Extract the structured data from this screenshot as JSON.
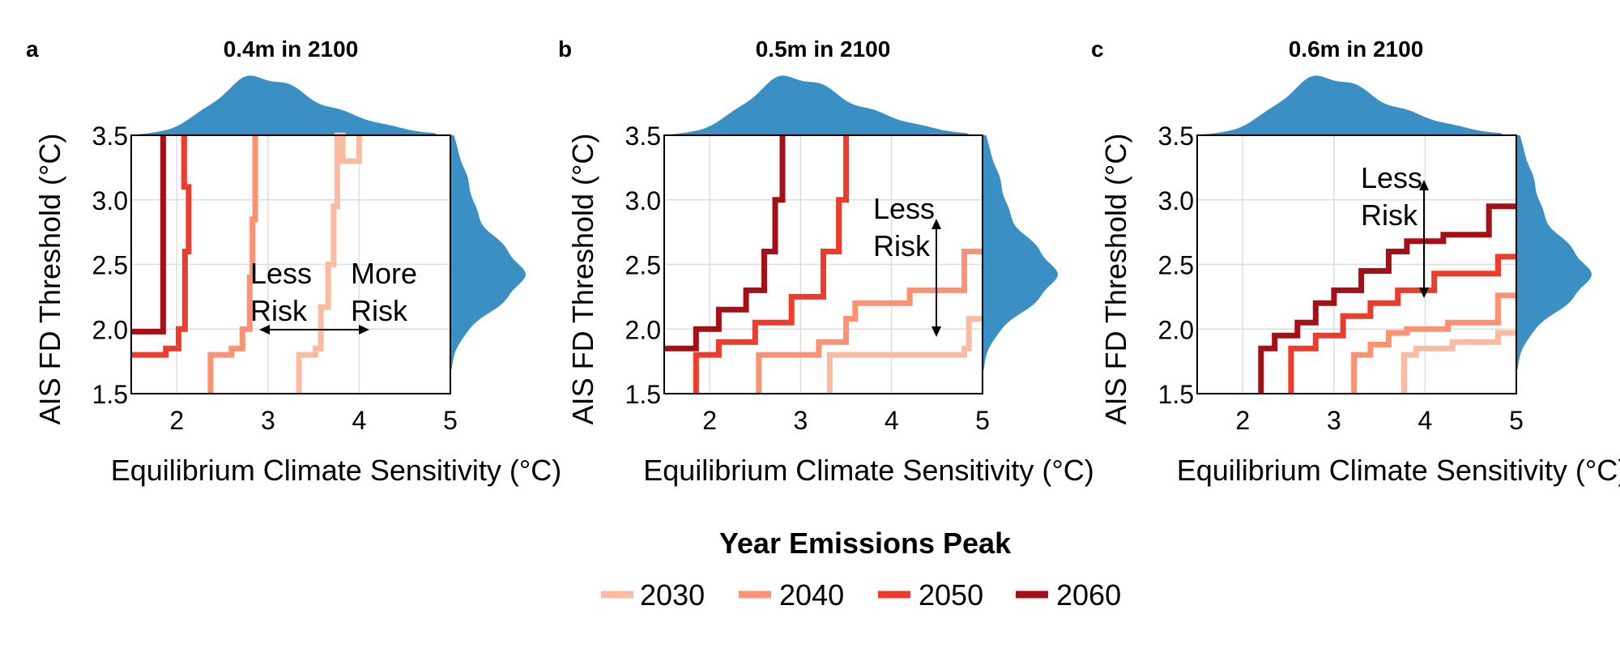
{
  "chart_data": [
    {
      "type": "line",
      "letter": "a",
      "title": "0.4m in 2100",
      "xlabel": "Equilibrium Climate Sensitivity (°C)",
      "ylabel": "AIS FD Threshold (°C)",
      "xlim": [
        1.5,
        5
      ],
      "ylim": [
        1.5,
        3.5
      ],
      "xticks": [
        "2",
        "3",
        "4",
        "5"
      ],
      "yticks": [
        "1.5",
        "2.0",
        "2.5",
        "3.0",
        "3.5"
      ],
      "grid": true,
      "series": [
        {
          "name": "2030",
          "color": "#fcbba1",
          "points": [
            [
              3.34,
              1.5
            ],
            [
              3.34,
              1.8
            ],
            [
              3.52,
              1.8
            ],
            [
              3.52,
              1.85
            ],
            [
              3.58,
              1.85
            ],
            [
              3.58,
              2.17
            ],
            [
              3.66,
              2.17
            ],
            [
              3.66,
              2.5
            ],
            [
              3.72,
              2.5
            ],
            [
              3.72,
              2.95
            ],
            [
              3.76,
              2.95
            ],
            [
              3.76,
              3.5
            ],
            [
              3.82,
              3.5
            ],
            [
              3.82,
              3.3
            ],
            [
              4.0,
              3.3
            ],
            [
              4.0,
              3.5
            ]
          ]
        },
        {
          "name": "2040",
          "color": "#fc9272",
          "points": [
            [
              2.37,
              1.5
            ],
            [
              2.37,
              1.8
            ],
            [
              2.6,
              1.8
            ],
            [
              2.6,
              1.85
            ],
            [
              2.72,
              1.85
            ],
            [
              2.72,
              2.0
            ],
            [
              2.8,
              2.0
            ],
            [
              2.8,
              2.4
            ],
            [
              2.83,
              2.4
            ],
            [
              2.83,
              2.85
            ],
            [
              2.86,
              2.85
            ],
            [
              2.86,
              3.5
            ]
          ]
        },
        {
          "name": "2050",
          "color": "#ef3b2c",
          "points": [
            [
              1.5,
              1.8
            ],
            [
              1.88,
              1.8
            ],
            [
              1.88,
              1.85
            ],
            [
              2.02,
              1.85
            ],
            [
              2.02,
              2.0
            ],
            [
              2.09,
              2.0
            ],
            [
              2.09,
              2.6
            ],
            [
              2.13,
              2.6
            ],
            [
              2.13,
              3.1
            ],
            [
              2.08,
              3.1
            ],
            [
              2.08,
              3.5
            ]
          ]
        },
        {
          "name": "2060",
          "color": "#a50f15",
          "points": [
            [
              1.5,
              1.98
            ],
            [
              1.85,
              1.98
            ],
            [
              1.85,
              3.5
            ]
          ]
        }
      ],
      "annotations": [
        {
          "text_lines": [
            "Less",
            "Risk"
          ]
        },
        {
          "text_lines": [
            "More",
            "Risk"
          ]
        }
      ]
    },
    {
      "type": "line",
      "letter": "b",
      "title": "0.5m in 2100",
      "xlabel": "Equilibrium Climate Sensitivity (°C)",
      "ylabel": "AIS FD Threshold (°C)",
      "xlim": [
        1.5,
        5
      ],
      "ylim": [
        1.5,
        3.5
      ],
      "xticks": [
        "2",
        "3",
        "4",
        "5"
      ],
      "yticks": [
        "1.5",
        "2.0",
        "2.5",
        "3.0",
        "3.5"
      ],
      "grid": true,
      "series": [
        {
          "name": "2030",
          "color": "#fcbba1",
          "points": [
            [
              3.32,
              1.5
            ],
            [
              3.32,
              1.8
            ],
            [
              4.8,
              1.8
            ],
            [
              4.8,
              1.85
            ],
            [
              4.85,
              1.85
            ],
            [
              4.85,
              2.08
            ],
            [
              5.0,
              2.08
            ]
          ]
        },
        {
          "name": "2040",
          "color": "#fc9272",
          "points": [
            [
              2.54,
              1.5
            ],
            [
              2.54,
              1.8
            ],
            [
              3.2,
              1.8
            ],
            [
              3.2,
              1.9
            ],
            [
              3.5,
              1.9
            ],
            [
              3.5,
              2.08
            ],
            [
              3.6,
              2.08
            ],
            [
              3.6,
              2.2
            ],
            [
              4.2,
              2.2
            ],
            [
              4.2,
              2.3
            ],
            [
              4.8,
              2.3
            ],
            [
              4.8,
              2.6
            ],
            [
              5.0,
              2.6
            ]
          ]
        },
        {
          "name": "2050",
          "color": "#ef3b2c",
          "points": [
            [
              1.85,
              1.5
            ],
            [
              1.85,
              1.8
            ],
            [
              2.1,
              1.8
            ],
            [
              2.1,
              1.9
            ],
            [
              2.5,
              1.9
            ],
            [
              2.5,
              2.05
            ],
            [
              2.9,
              2.05
            ],
            [
              2.9,
              2.25
            ],
            [
              3.25,
              2.25
            ],
            [
              3.25,
              2.6
            ],
            [
              3.42,
              2.6
            ],
            [
              3.42,
              3.0
            ],
            [
              3.5,
              3.0
            ],
            [
              3.5,
              3.5
            ]
          ]
        },
        {
          "name": "2060",
          "color": "#a50f15",
          "points": [
            [
              1.5,
              1.85
            ],
            [
              1.85,
              1.85
            ],
            [
              1.85,
              2.0
            ],
            [
              2.1,
              2.0
            ],
            [
              2.1,
              2.15
            ],
            [
              2.4,
              2.15
            ],
            [
              2.4,
              2.3
            ],
            [
              2.6,
              2.3
            ],
            [
              2.6,
              2.6
            ],
            [
              2.72,
              2.6
            ],
            [
              2.72,
              3.0
            ],
            [
              2.8,
              3.0
            ],
            [
              2.8,
              3.5
            ]
          ]
        }
      ],
      "annotations": [
        {
          "text_lines": [
            "Less",
            "Risk"
          ]
        }
      ]
    },
    {
      "type": "line",
      "letter": "c",
      "title": "0.6m in 2100",
      "xlabel": "Equilibrium Climate Sensitivity (°C)",
      "ylabel": "AIS FD Threshold (°C)",
      "xlim": [
        1.5,
        5
      ],
      "ylim": [
        1.5,
        3.5
      ],
      "xticks": [
        "2",
        "3",
        "4",
        "5"
      ],
      "yticks": [
        "1.5",
        "2.0",
        "2.5",
        "3.0",
        "3.5"
      ],
      "grid": true,
      "series": [
        {
          "name": "2030",
          "color": "#fcbba1",
          "points": [
            [
              3.77,
              1.5
            ],
            [
              3.77,
              1.8
            ],
            [
              3.9,
              1.8
            ],
            [
              3.9,
              1.85
            ],
            [
              4.3,
              1.85
            ],
            [
              4.3,
              1.9
            ],
            [
              4.8,
              1.9
            ],
            [
              4.8,
              1.97
            ],
            [
              5.0,
              1.97
            ]
          ]
        },
        {
          "name": "2040",
          "color": "#fc9272",
          "points": [
            [
              3.22,
              1.5
            ],
            [
              3.22,
              1.8
            ],
            [
              3.4,
              1.8
            ],
            [
              3.4,
              1.88
            ],
            [
              3.6,
              1.88
            ],
            [
              3.6,
              1.97
            ],
            [
              3.8,
              1.97
            ],
            [
              3.8,
              2.0
            ],
            [
              4.25,
              2.0
            ],
            [
              4.25,
              2.05
            ],
            [
              4.8,
              2.05
            ],
            [
              4.8,
              2.26
            ],
            [
              5.0,
              2.26
            ]
          ]
        },
        {
          "name": "2050",
          "color": "#ef3b2c",
          "points": [
            [
              2.53,
              1.5
            ],
            [
              2.53,
              1.85
            ],
            [
              2.8,
              1.85
            ],
            [
              2.8,
              1.95
            ],
            [
              3.1,
              1.95
            ],
            [
              3.1,
              2.1
            ],
            [
              3.4,
              2.1
            ],
            [
              3.4,
              2.2
            ],
            [
              3.7,
              2.2
            ],
            [
              3.7,
              2.3
            ],
            [
              4.1,
              2.3
            ],
            [
              4.1,
              2.43
            ],
            [
              4.8,
              2.43
            ],
            [
              4.8,
              2.56
            ],
            [
              5.0,
              2.56
            ]
          ]
        },
        {
          "name": "2060",
          "color": "#a50f15",
          "points": [
            [
              2.2,
              1.5
            ],
            [
              2.2,
              1.85
            ],
            [
              2.35,
              1.85
            ],
            [
              2.35,
              1.95
            ],
            [
              2.6,
              1.95
            ],
            [
              2.6,
              2.05
            ],
            [
              2.8,
              2.05
            ],
            [
              2.8,
              2.2
            ],
            [
              3.0,
              2.2
            ],
            [
              3.0,
              2.3
            ],
            [
              3.3,
              2.3
            ],
            [
              3.3,
              2.45
            ],
            [
              3.6,
              2.45
            ],
            [
              3.6,
              2.6
            ],
            [
              3.8,
              2.6
            ],
            [
              3.8,
              2.68
            ],
            [
              4.2,
              2.68
            ],
            [
              4.2,
              2.73
            ],
            [
              4.7,
              2.73
            ],
            [
              4.7,
              2.95
            ],
            [
              5.0,
              2.95
            ]
          ]
        }
      ],
      "annotations": [
        {
          "text_lines": [
            "Less",
            "Risk"
          ]
        }
      ]
    }
  ],
  "legend": {
    "title": "Year Emissions Peak",
    "placement": "bottom-center",
    "items": [
      {
        "label": "2030",
        "color": "#fcbba1"
      },
      {
        "label": "2040",
        "color": "#fc9272"
      },
      {
        "label": "2050",
        "color": "#ef3b2c"
      },
      {
        "label": "2060",
        "color": "#a50f15"
      }
    ]
  },
  "colors": {
    "marginal_density": "#3a8fc4",
    "grid": "#dddddd"
  }
}
